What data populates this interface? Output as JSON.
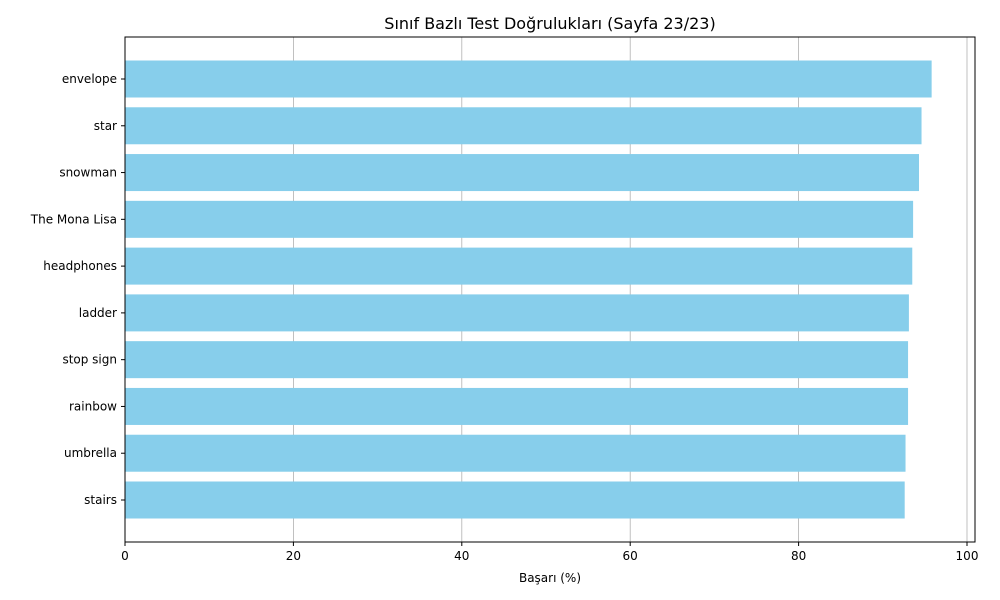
{
  "chart_data": {
    "type": "bar",
    "orientation": "horizontal",
    "title": "Sınıf Bazlı Test Doğrulukları (Sayfa 23/23)",
    "xlabel": "Başarı (%)",
    "ylabel": "",
    "xlim": [
      0,
      100
    ],
    "xticks": [
      "0",
      "20",
      "40",
      "60",
      "80",
      "100"
    ],
    "grid": "vertical",
    "bar_color": "#87ceeb",
    "categories": [
      "envelope",
      "star",
      "snowman",
      "The Mona Lisa",
      "headphones",
      "ladder",
      "stop sign",
      "rainbow",
      "umbrella",
      "stairs"
    ],
    "values": [
      95.8,
      94.6,
      94.3,
      93.6,
      93.5,
      93.1,
      93.0,
      93.0,
      92.7,
      92.6
    ]
  }
}
